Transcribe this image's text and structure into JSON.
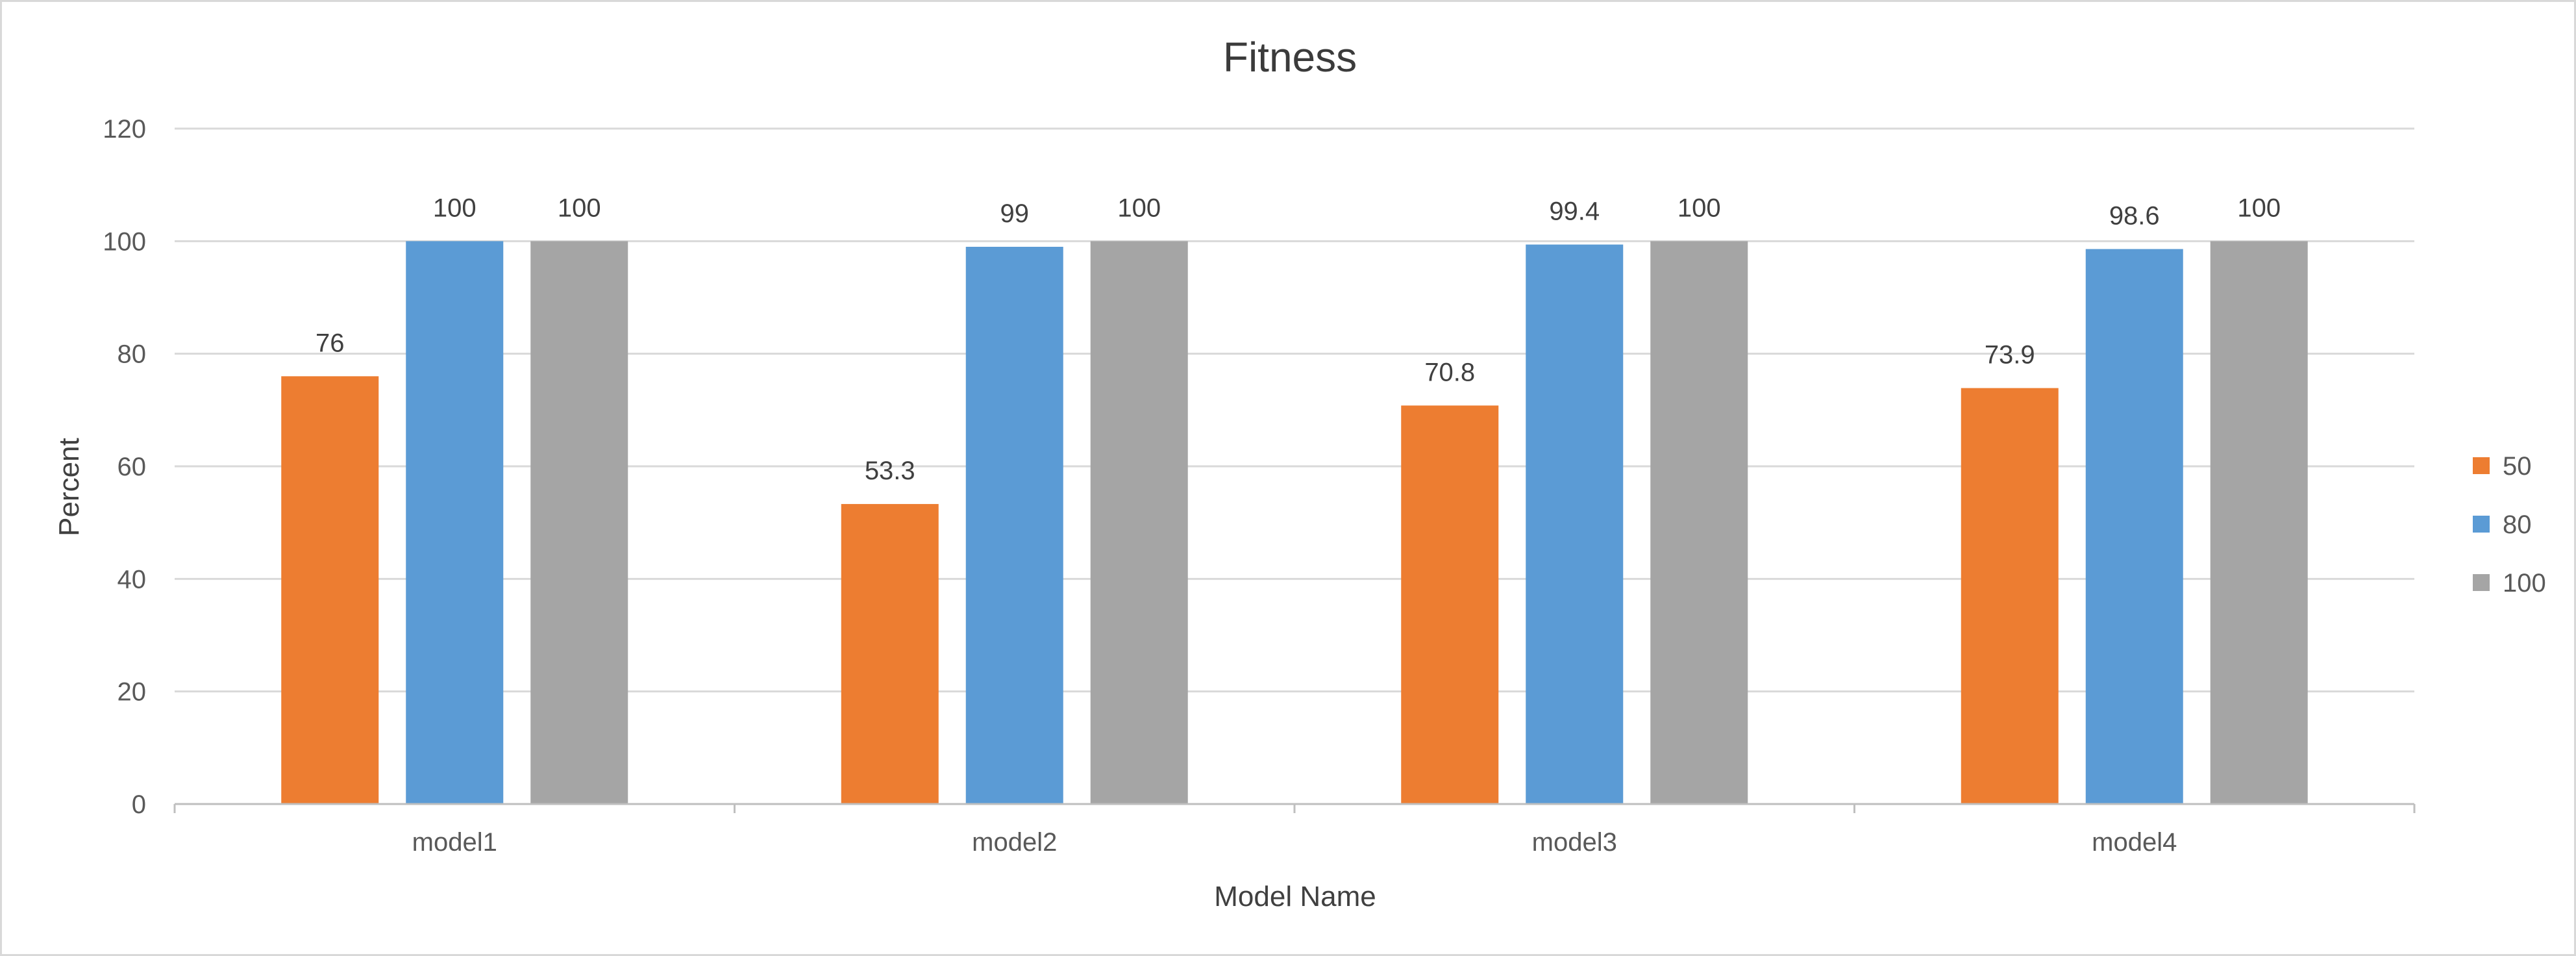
{
  "chart_data": {
    "type": "bar",
    "title": "Fitness",
    "xlabel": "Model Name",
    "ylabel": "Percent",
    "categories": [
      "model1",
      "model2",
      "model3",
      "model4"
    ],
    "series": [
      {
        "name": "50",
        "values": [
          76,
          53.3,
          70.8,
          73.9
        ],
        "color": "#ED7D31"
      },
      {
        "name": "80",
        "values": [
          100,
          99,
          99.4,
          98.6
        ],
        "color": "#5B9BD5"
      },
      {
        "name": "100",
        "values": [
          100,
          100,
          100,
          100
        ],
        "color": "#A5A5A5"
      }
    ],
    "ylim": [
      0,
      120
    ],
    "yticks": [
      0,
      20,
      40,
      60,
      80,
      100,
      120
    ],
    "grid": true,
    "legend_position": "right",
    "data_labels": true
  }
}
